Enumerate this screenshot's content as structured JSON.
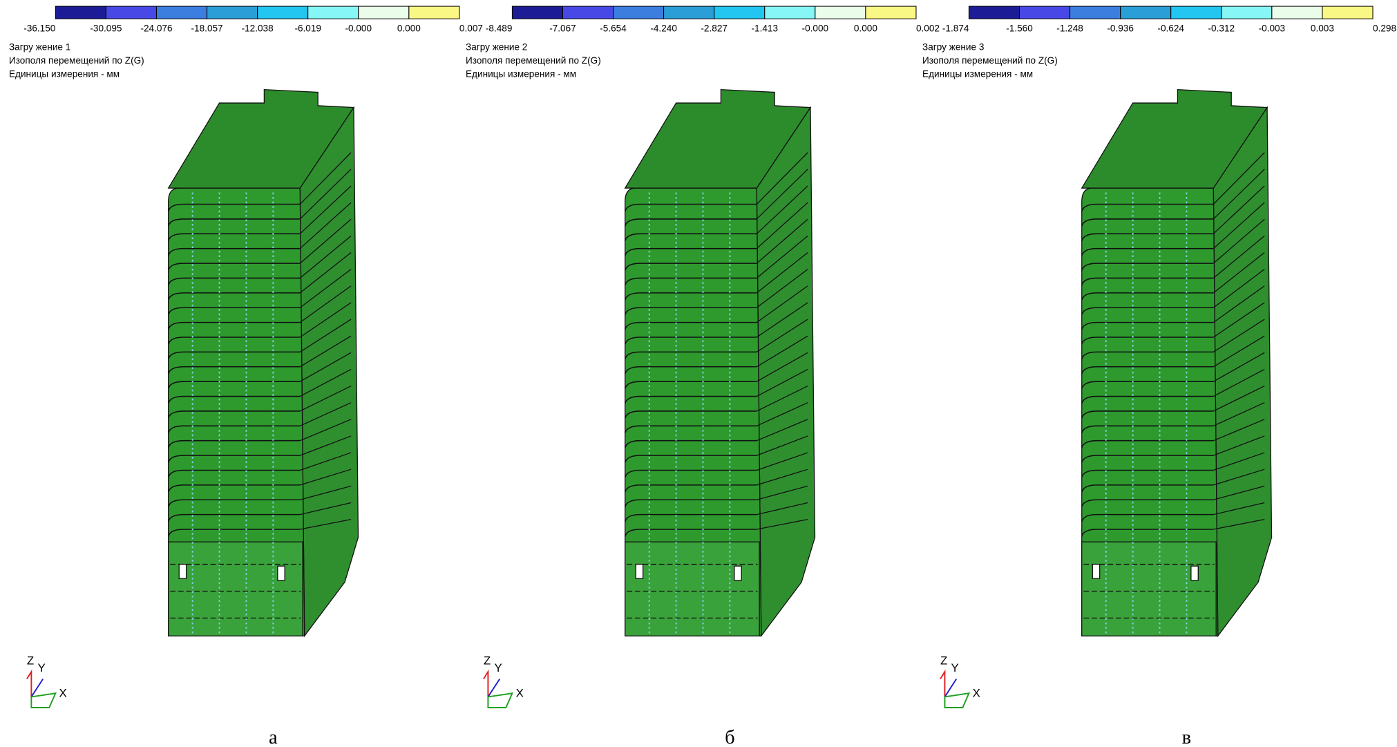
{
  "panels": [
    {
      "legend": {
        "ticks": [
          "-36.150",
          "-30.095",
          "-24.076",
          "-18.057",
          "-12.038",
          "-6.019",
          "-0.000",
          "0.000",
          "0.007"
        ]
      },
      "load": "Загру жение  1",
      "title": "Изополя  перемещений по Z(G)",
      "units": "Единицы измерения - мм",
      "axes": {
        "z": "Z",
        "y": "Y",
        "x": "X"
      },
      "caption": "а"
    },
    {
      "legend": {
        "ticks": [
          "-8.489",
          "-7.067",
          "-5.654",
          "-4.240",
          "-2.827",
          "-1.413",
          "-0.000",
          "0.000",
          "0.002"
        ]
      },
      "load": "Загру жение  2",
      "title": "Изополя  перемещений по Z(G)",
      "units": "Единицы измерения - мм",
      "axes": {
        "z": "Z",
        "y": "Y",
        "x": "X"
      },
      "caption": "б"
    },
    {
      "legend": {
        "ticks": [
          "-1.874",
          "-1.560",
          "-1.248",
          "-0.936",
          "-0.624",
          "-0.312",
          "-0.003",
          "0.003",
          "0.298"
        ]
      },
      "load": "Загру жение  3",
      "title": "Изополя  перемещений по Z(G)",
      "units": "Единицы измерения - мм",
      "axes": {
        "z": "Z",
        "y": "Y",
        "x": "X"
      },
      "caption": "в"
    }
  ]
}
